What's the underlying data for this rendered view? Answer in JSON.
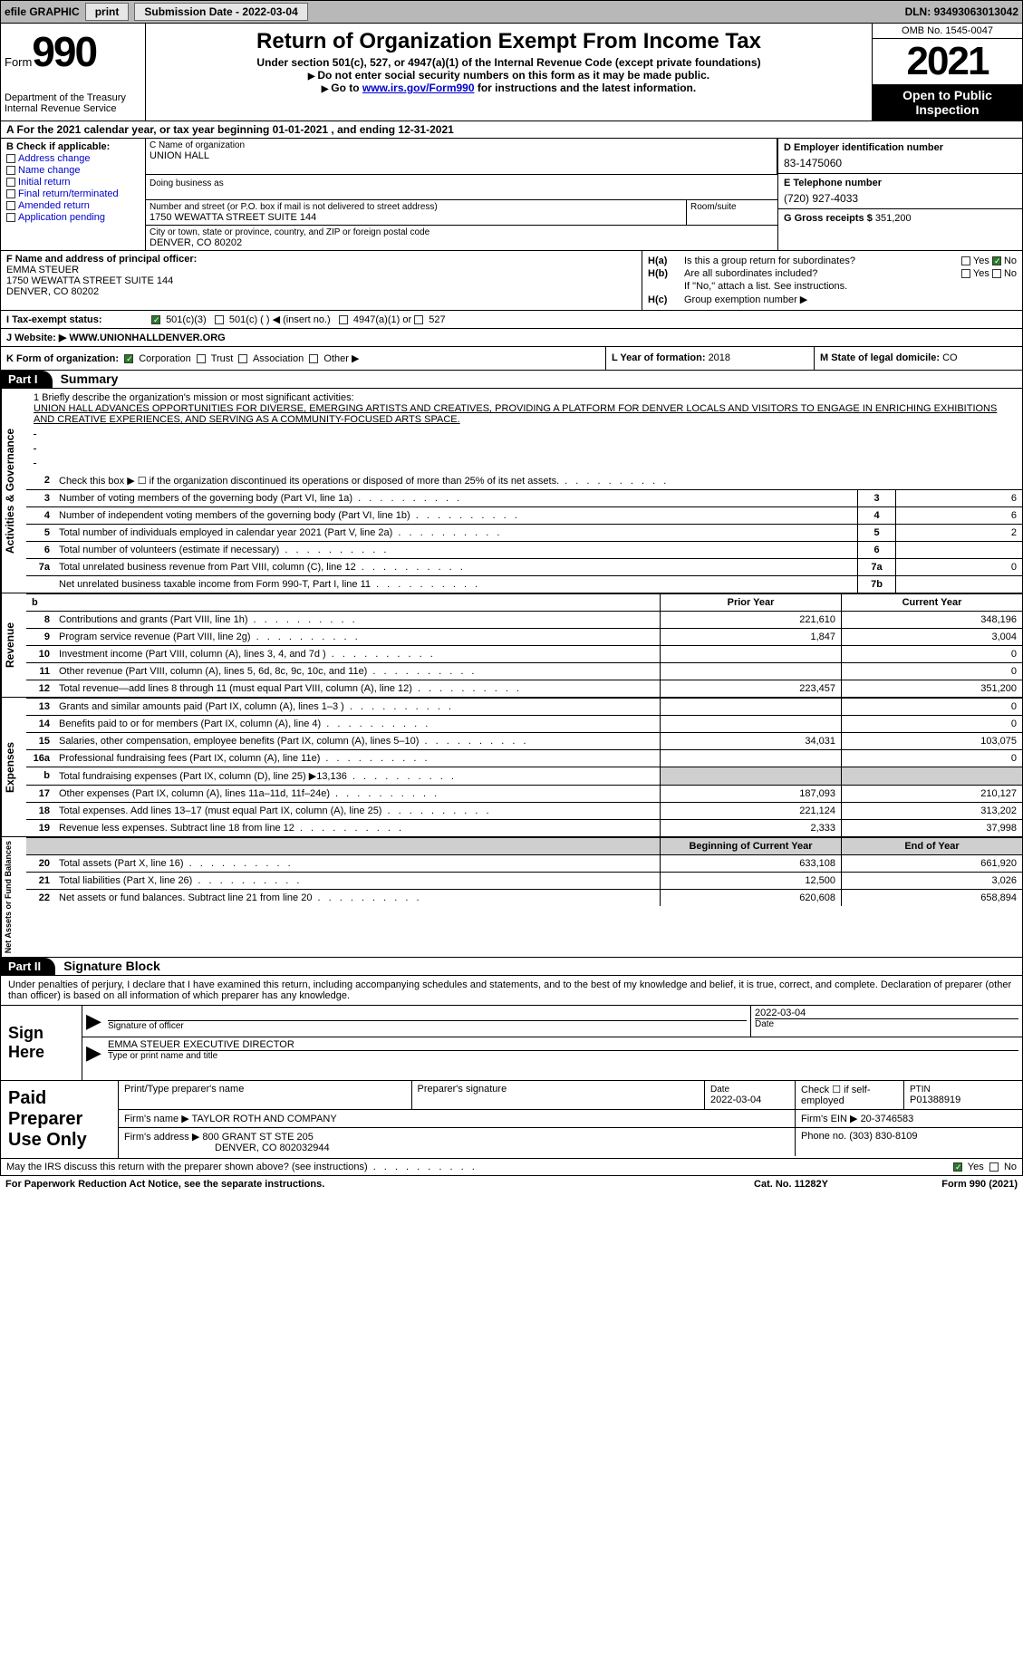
{
  "top_bar": {
    "efile": "efile GRAPHIC",
    "print": "print",
    "sub_label": "Submission Date - ",
    "sub_date": "2022-03-04",
    "dln_label": "DLN: ",
    "dln": "93493063013042"
  },
  "header": {
    "form_word": "Form",
    "form_num": "990",
    "dept": "Department of the Treasury\nInternal Revenue Service",
    "title": "Return of Organization Exempt From Income Tax",
    "subtitle": "Under section 501(c), 527, or 4947(a)(1) of the Internal Revenue Code (except private foundations)",
    "warn": "Do not enter social security numbers on this form as it may be made public.",
    "goto_pre": "Go to ",
    "goto_link": "www.irs.gov/Form990",
    "goto_post": " for instructions and the latest information.",
    "omb": "OMB No. 1545-0047",
    "year": "2021",
    "inspect": "Open to Public Inspection"
  },
  "period": {
    "a_pre": "A For the 2021 calendar year, or tax year beginning ",
    "begin": "01-01-2021",
    "mid": " , and ending ",
    "end": "12-31-2021"
  },
  "box_b": {
    "label": "B Check if applicable:",
    "items": [
      "Address change",
      "Name change",
      "Initial return",
      "Final return/terminated",
      "Amended return",
      "Application pending"
    ]
  },
  "box_c": {
    "name_lbl": "C Name of organization",
    "name": "UNION HALL",
    "dba_lbl": "Doing business as",
    "addr_lbl": "Number and street (or P.O. box if mail is not delivered to street address)",
    "addr": "1750 WEWATTA STREET SUITE 144",
    "room_lbl": "Room/suite",
    "city_lbl": "City or town, state or province, country, and ZIP or foreign postal code",
    "city": "DENVER, CO  80202"
  },
  "box_d": {
    "lbl": "D Employer identification number",
    "val": "83-1475060"
  },
  "box_e": {
    "lbl": "E Telephone number",
    "val": "(720) 927-4033"
  },
  "box_g": {
    "lbl": "G Gross receipts $ ",
    "val": "351,200"
  },
  "box_f": {
    "lbl": "F Name and address of principal officer:",
    "name": "EMMA STEUER",
    "addr1": "1750 WEWATTA STREET SUITE 144",
    "addr2": "DENVER, CO  80202"
  },
  "box_h": {
    "a_tag": "H(a)",
    "a_q": "Is this a group return for subordinates?",
    "b_tag": "H(b)",
    "b_q": "Are all subordinates included?",
    "b_note": "If \"No,\" attach a list. See instructions.",
    "c_tag": "H(c)",
    "c_q": "Group exemption number ▶",
    "yes": "Yes",
    "no": "No"
  },
  "row_i": {
    "lbl": "I   Tax-exempt status:",
    "opts": [
      "501(c)(3)",
      "501(c) (  ) ◀ (insert no.)",
      "4947(a)(1) or",
      "527"
    ]
  },
  "row_j": {
    "lbl": "J   Website: ▶  ",
    "val": "WWW.UNIONHALLDENVER.ORG"
  },
  "row_k": {
    "lbl": "K Form of organization:",
    "opts": [
      "Corporation",
      "Trust",
      "Association",
      "Other ▶"
    ]
  },
  "row_l": {
    "lbl": "L Year of formation: ",
    "val": "2018"
  },
  "row_m": {
    "lbl": "M State of legal domicile: ",
    "val": "CO"
  },
  "parts": {
    "p1_tag": "Part I",
    "p1_title": "Summary",
    "p2_tag": "Part II",
    "p2_title": "Signature Block"
  },
  "mission": {
    "lead": "1   Briefly describe the organization's mission or most significant activities:",
    "text": "UNION HALL ADVANCES OPPORTUNITIES FOR DIVERSE, EMERGING ARTISTS AND CREATIVES, PROVIDING A PLATFORM FOR DENVER LOCALS AND VISITORS TO ENGAGE IN ENRICHING EXHIBITIONS AND CREATIVE EXPERIENCES, AND SERVING AS A COMMUNITY-FOCUSED ARTS SPACE."
  },
  "gov_lines": [
    {
      "n": "2",
      "t": "Check this box ▶ ☐ if the organization discontinued its operations or disposed of more than 25% of its net assets.",
      "box": "",
      "v": ""
    },
    {
      "n": "3",
      "t": "Number of voting members of the governing body (Part VI, line 1a)",
      "box": "3",
      "v": "6"
    },
    {
      "n": "4",
      "t": "Number of independent voting members of the governing body (Part VI, line 1b)",
      "box": "4",
      "v": "6"
    },
    {
      "n": "5",
      "t": "Total number of individuals employed in calendar year 2021 (Part V, line 2a)",
      "box": "5",
      "v": "2"
    },
    {
      "n": "6",
      "t": "Total number of volunteers (estimate if necessary)",
      "box": "6",
      "v": ""
    },
    {
      "n": "7a",
      "t": "Total unrelated business revenue from Part VIII, column (C), line 12",
      "box": "7a",
      "v": "0"
    },
    {
      "n": "",
      "t": "Net unrelated business taxable income from Form 990-T, Part I, line 11",
      "box": "7b",
      "v": ""
    }
  ],
  "col_hdrs": {
    "py": "Prior Year",
    "cy": "Current Year",
    "boy": "Beginning of Current Year",
    "eoy": "End of Year"
  },
  "revenue": {
    "side": "Revenue",
    "rows": [
      {
        "n": "8",
        "t": "Contributions and grants (Part VIII, line 1h)",
        "py": "221,610",
        "cy": "348,196"
      },
      {
        "n": "9",
        "t": "Program service revenue (Part VIII, line 2g)",
        "py": "1,847",
        "cy": "3,004"
      },
      {
        "n": "10",
        "t": "Investment income (Part VIII, column (A), lines 3, 4, and 7d )",
        "py": "",
        "cy": "0"
      },
      {
        "n": "11",
        "t": "Other revenue (Part VIII, column (A), lines 5, 6d, 8c, 9c, 10c, and 11e)",
        "py": "",
        "cy": "0"
      },
      {
        "n": "12",
        "t": "Total revenue—add lines 8 through 11 (must equal Part VIII, column (A), line 12)",
        "py": "223,457",
        "cy": "351,200"
      }
    ]
  },
  "expenses": {
    "side": "Expenses",
    "rows": [
      {
        "n": "13",
        "t": "Grants and similar amounts paid (Part IX, column (A), lines 1–3 )",
        "py": "",
        "cy": "0"
      },
      {
        "n": "14",
        "t": "Benefits paid to or for members (Part IX, column (A), line 4)",
        "py": "",
        "cy": "0"
      },
      {
        "n": "15",
        "t": "Salaries, other compensation, employee benefits (Part IX, column (A), lines 5–10)",
        "py": "34,031",
        "cy": "103,075"
      },
      {
        "n": "16a",
        "t": "Professional fundraising fees (Part IX, column (A), line 11e)",
        "py": "",
        "cy": "0"
      },
      {
        "n": "b",
        "t": "Total fundraising expenses (Part IX, column (D), line 25) ▶13,136",
        "py": "GREY",
        "cy": "GREY"
      },
      {
        "n": "17",
        "t": "Other expenses (Part IX, column (A), lines 11a–11d, 11f–24e)",
        "py": "187,093",
        "cy": "210,127"
      },
      {
        "n": "18",
        "t": "Total expenses. Add lines 13–17 (must equal Part IX, column (A), line 25)",
        "py": "221,124",
        "cy": "313,202"
      },
      {
        "n": "19",
        "t": "Revenue less expenses. Subtract line 18 from line 12",
        "py": "2,333",
        "cy": "37,998"
      }
    ]
  },
  "netassets": {
    "side": "Net Assets or Fund Balances",
    "rows": [
      {
        "n": "20",
        "t": "Total assets (Part X, line 16)",
        "py": "633,108",
        "cy": "661,920"
      },
      {
        "n": "21",
        "t": "Total liabilities (Part X, line 26)",
        "py": "12,500",
        "cy": "3,026"
      },
      {
        "n": "22",
        "t": "Net assets or fund balances. Subtract line 21 from line 20",
        "py": "620,608",
        "cy": "658,894"
      }
    ]
  },
  "sig": {
    "declare": "Under penalties of perjury, I declare that I have examined this return, including accompanying schedules and statements, and to the best of my knowledge and belief, it is true, correct, and complete. Declaration of preparer (other than officer) is based on all information of which preparer has any knowledge.",
    "sign_here": "Sign Here",
    "sig_lbl": "Signature of officer",
    "date_lbl": "Date",
    "date": "2022-03-04",
    "name": "EMMA STEUER  EXECUTIVE DIRECTOR",
    "name_lbl": "Type or print name and title"
  },
  "prep": {
    "title": "Paid Preparer Use Only",
    "h1": "Print/Type preparer's name",
    "h2": "Preparer's signature",
    "h3_lbl": "Date",
    "h3": "2022-03-04",
    "h4": "Check ☐ if self-employed",
    "h5_lbl": "PTIN",
    "h5": "P01388919",
    "firm_lbl": "Firm's name    ▶ ",
    "firm": "TAYLOR ROTH AND COMPANY",
    "ein_lbl": "Firm's EIN ▶ ",
    "ein": "20-3746583",
    "addr_lbl": "Firm's address ▶ ",
    "addr1": "800 GRANT ST STE 205",
    "addr2": "DENVER, CO  802032944",
    "phone_lbl": "Phone no. ",
    "phone": "(303) 830-8109"
  },
  "discuss": {
    "q": "May the IRS discuss this return with the preparer shown above? (see instructions)",
    "yes": "Yes",
    "no": "No"
  },
  "footer": {
    "pra": "For Paperwork Reduction Act Notice, see the separate instructions.",
    "cat": "Cat. No. 11282Y",
    "form": "Form 990 (2021)"
  },
  "side_labels": {
    "gov": "Activities & Governance"
  }
}
